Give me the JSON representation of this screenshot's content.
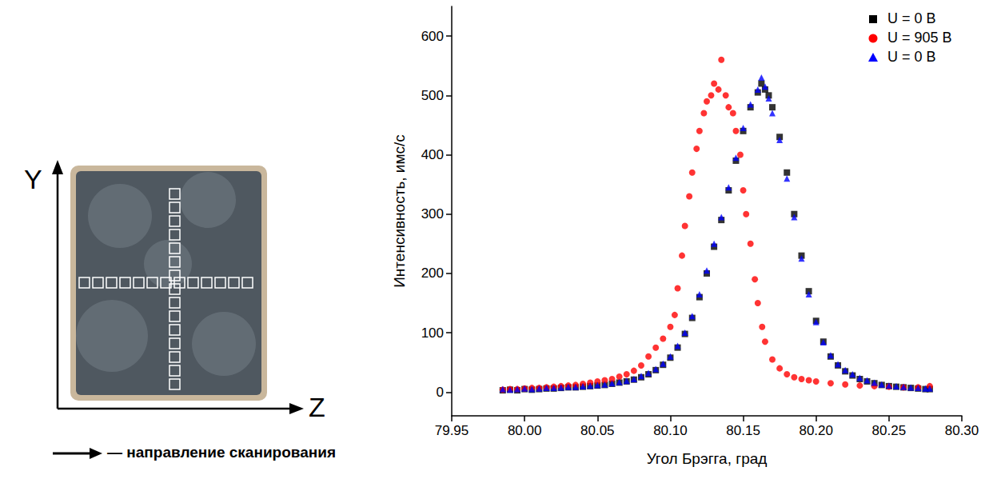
{
  "diagram": {
    "y_axis_label": "Y",
    "z_axis_label": "Z",
    "scan_direction_label": "— направление сканирования"
  },
  "chart_data": {
    "type": "scatter",
    "x_label": "Угол Брэгга, град",
    "y_label": "Интенсивность, имс/с",
    "xlim": [
      79.95,
      80.3
    ],
    "ylim": [
      -40,
      650
    ],
    "xticks": [
      79.95,
      {
        "value": 80.0,
        "label": "80.00"
      },
      80.05,
      {
        "value": 80.1,
        "label": "80.10"
      },
      80.15,
      {
        "value": 80.2,
        "label": "80.20"
      },
      80.25,
      {
        "value": 80.3,
        "label": "80.30"
      }
    ],
    "yticks": [
      0,
      100,
      200,
      300,
      400,
      500,
      600
    ],
    "grid": false,
    "legend": "upper right",
    "series": [
      {
        "name": "U = 0 В",
        "color": "#000000",
        "marker": "square",
        "x": [
          79.985,
          79.99,
          79.995,
          80.0,
          80.005,
          80.01,
          80.015,
          80.02,
          80.025,
          80.03,
          80.035,
          80.04,
          80.045,
          80.05,
          80.055,
          80.06,
          80.065,
          80.07,
          80.075,
          80.08,
          80.085,
          80.09,
          80.095,
          80.1,
          80.105,
          80.11,
          80.115,
          80.12,
          80.125,
          80.13,
          80.135,
          80.14,
          80.145,
          80.15,
          80.155,
          80.16,
          80.1625,
          80.165,
          80.1675,
          80.17,
          80.175,
          80.18,
          80.185,
          80.19,
          80.195,
          80.2,
          80.205,
          80.21,
          80.215,
          80.22,
          80.225,
          80.23,
          80.235,
          80.24,
          80.245,
          80.25,
          80.255,
          80.26,
          80.265,
          80.27,
          80.275,
          80.278
        ],
        "values": [
          3,
          4,
          3,
          5,
          4,
          5,
          6,
          6,
          7,
          8,
          8,
          9,
          10,
          11,
          12,
          14,
          16,
          18,
          21,
          25,
          30,
          37,
          46,
          58,
          75,
          98,
          125,
          160,
          200,
          245,
          290,
          340,
          390,
          440,
          480,
          505,
          520,
          510,
          500,
          480,
          430,
          370,
          300,
          230,
          170,
          120,
          85,
          60,
          45,
          35,
          28,
          22,
          18,
          15,
          12,
          10,
          9,
          8,
          7,
          6,
          5,
          5
        ]
      },
      {
        "name": "U = 905 В",
        "color": "#ff0000",
        "marker": "circle",
        "x": [
          79.985,
          79.99,
          79.995,
          80.0,
          80.005,
          80.01,
          80.015,
          80.02,
          80.025,
          80.03,
          80.035,
          80.04,
          80.045,
          80.05,
          80.055,
          80.06,
          80.065,
          80.07,
          80.075,
          80.08,
          80.085,
          80.09,
          80.095,
          80.1,
          80.103,
          80.105,
          80.108,
          80.11,
          80.113,
          80.115,
          80.118,
          80.12,
          80.123,
          80.125,
          80.128,
          80.13,
          80.133,
          80.135,
          80.138,
          80.14,
          80.143,
          80.145,
          80.148,
          80.15,
          80.152,
          80.155,
          80.158,
          80.16,
          80.163,
          80.165,
          80.17,
          80.175,
          80.18,
          80.185,
          80.19,
          80.195,
          80.2,
          80.21,
          80.22,
          80.23,
          80.24,
          80.25,
          80.26,
          80.27,
          80.278
        ],
        "values": [
          4,
          5,
          5,
          6,
          7,
          7,
          8,
          9,
          10,
          11,
          12,
          14,
          16,
          18,
          20,
          22,
          26,
          30,
          36,
          45,
          60,
          75,
          90,
          110,
          130,
          175,
          230,
          280,
          330,
          370,
          410,
          440,
          470,
          490,
          500,
          520,
          510,
          560,
          500,
          480,
          470,
          440,
          400,
          340,
          300,
          250,
          190,
          150,
          110,
          85,
          55,
          40,
          30,
          25,
          22,
          20,
          18,
          15,
          13,
          11,
          10,
          9,
          8,
          8,
          10
        ]
      },
      {
        "name": "U = 0 В",
        "color": "#0000ff",
        "marker": "triangle",
        "x": [
          79.985,
          79.99,
          79.995,
          80.0,
          80.005,
          80.01,
          80.015,
          80.02,
          80.025,
          80.03,
          80.035,
          80.04,
          80.045,
          80.05,
          80.055,
          80.06,
          80.065,
          80.07,
          80.075,
          80.08,
          80.085,
          80.09,
          80.095,
          80.1,
          80.105,
          80.11,
          80.115,
          80.12,
          80.125,
          80.13,
          80.135,
          80.14,
          80.145,
          80.15,
          80.155,
          80.16,
          80.1625,
          80.165,
          80.1675,
          80.17,
          80.175,
          80.18,
          80.185,
          80.19,
          80.195,
          80.2,
          80.205,
          80.21,
          80.215,
          80.22,
          80.225,
          80.23,
          80.235,
          80.24,
          80.245,
          80.25,
          80.255,
          80.26,
          80.265,
          80.27,
          80.275,
          80.278
        ],
        "values": [
          5,
          4,
          5,
          6,
          5,
          6,
          7,
          7,
          8,
          9,
          9,
          10,
          11,
          12,
          13,
          15,
          17,
          19,
          22,
          27,
          32,
          39,
          48,
          60,
          78,
          100,
          128,
          165,
          205,
          250,
          295,
          345,
          395,
          445,
          485,
          510,
          530,
          515,
          495,
          470,
          425,
          360,
          295,
          225,
          165,
          118,
          84,
          62,
          47,
          37,
          30,
          24,
          20,
          16,
          13,
          11,
          10,
          9,
          8,
          7,
          6,
          6
        ]
      }
    ]
  }
}
